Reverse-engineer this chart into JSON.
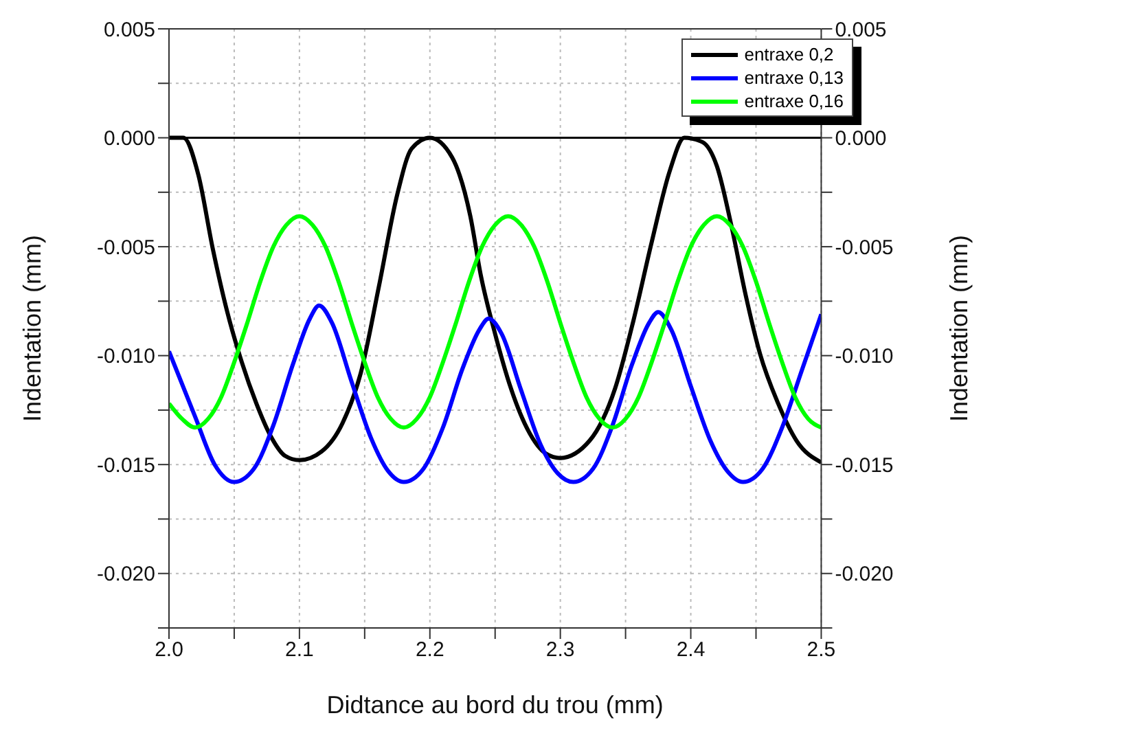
{
  "chart_data": {
    "type": "line",
    "xlabel": "Didtance au bord du trou (mm)",
    "ylabel": "Indentation (mm)",
    "y2label": "Indentation (mm)",
    "xlim": [
      2.0,
      2.5
    ],
    "xticks": [
      {
        "value": 2.0,
        "label": "2.0"
      },
      {
        "value": 2.05,
        "label": null
      },
      {
        "value": 2.1,
        "label": "2.1"
      },
      {
        "value": 2.15,
        "label": null
      },
      {
        "value": 2.2,
        "label": "2.2"
      },
      {
        "value": 2.25,
        "label": null
      },
      {
        "value": 2.3,
        "label": "2.3"
      },
      {
        "value": 2.35,
        "label": null
      },
      {
        "value": 2.4,
        "label": "2.4"
      },
      {
        "value": 2.45,
        "label": null
      },
      {
        "value": 2.5,
        "label": "2.5"
      }
    ],
    "ylim": [
      -0.0225,
      0.005
    ],
    "yticks": [
      {
        "value": -0.0225,
        "label": null
      },
      {
        "value": -0.02,
        "label": "-0.020"
      },
      {
        "value": -0.0175,
        "label": null
      },
      {
        "value": -0.015,
        "label": "-0.015"
      },
      {
        "value": -0.0125,
        "label": null
      },
      {
        "value": -0.01,
        "label": "-0.010"
      },
      {
        "value": -0.0075,
        "label": null
      },
      {
        "value": -0.005,
        "label": "-0.005"
      },
      {
        "value": -0.0025,
        "label": null
      },
      {
        "value": 0,
        "label": "0.000"
      },
      {
        "value": 0.0025,
        "label": null
      },
      {
        "value": 0.005,
        "label": "0.005"
      }
    ],
    "y2lim": [
      -0.0225,
      0.005
    ],
    "y2ticks": [
      {
        "value": -0.0225,
        "label": null
      },
      {
        "value": -0.02,
        "label": "-0.020"
      },
      {
        "value": -0.0175,
        "label": null
      },
      {
        "value": -0.015,
        "label": "-0.015"
      },
      {
        "value": -0.0125,
        "label": null
      },
      {
        "value": -0.01,
        "label": "-0.010"
      },
      {
        "value": -0.0075,
        "label": null
      },
      {
        "value": -0.005,
        "label": "-0.005"
      },
      {
        "value": -0.0025,
        "label": null
      },
      {
        "value": 0,
        "label": "0.000"
      },
      {
        "value": 0.0025,
        "label": null
      },
      {
        "value": 0.005,
        "label": "0.005"
      }
    ],
    "grid": true,
    "legend": "top right",
    "marker": "none",
    "line_style": "solid",
    "ref_lines": [
      {
        "axis": "y",
        "value": 0,
        "color": "#000000"
      }
    ],
    "series": [
      {
        "name": "entraxe 0,2",
        "color": "#000000",
        "x": [
          2.0,
          2.011,
          2.0225,
          2.0336,
          2.0447,
          2.0558,
          2.067,
          2.078,
          2.089,
          2.1,
          2.117,
          2.133,
          2.147,
          2.161,
          2.175,
          2.186,
          2.2,
          2.217,
          2.231,
          2.239,
          2.25,
          2.261,
          2.275,
          2.289,
          2.3,
          2.3225,
          2.342,
          2.356,
          2.37,
          2.384,
          2.395,
          2.409,
          2.42,
          2.431,
          2.442,
          2.453,
          2.467,
          2.481,
          2.5
        ],
        "values": [
          0,
          0,
          -0.0017,
          -0.0051,
          -0.008,
          -0.0103,
          -0.0122,
          -0.0137,
          -0.0146,
          -0.0148,
          -0.0144,
          -0.0131,
          -0.0108,
          -0.0068,
          -0.0026,
          -0.0005,
          0,
          -0.0009,
          -0.0036,
          -0.0063,
          -0.009,
          -0.0113,
          -0.0134,
          -0.0145,
          -0.0147,
          -0.0139,
          -0.0115,
          -0.0084,
          -0.0048,
          -0.0015,
          0,
          -0.0002,
          -0.0013,
          -0.004,
          -0.0072,
          -0.0099,
          -0.0122,
          -0.0139,
          -0.0149
        ]
      },
      {
        "name": "entraxe 0,13",
        "color": "#0000ff",
        "x": [
          2.0,
          2.02,
          2.035,
          2.05,
          2.065,
          2.08,
          2.095,
          2.108,
          2.115,
          2.125,
          2.14,
          2.155,
          2.168,
          2.18,
          2.195,
          2.21,
          2.225,
          2.238,
          2.245,
          2.255,
          2.27,
          2.285,
          2.298,
          2.31,
          2.325,
          2.34,
          2.355,
          2.368,
          2.375,
          2.385,
          2.4,
          2.415,
          2.428,
          2.44,
          2.455,
          2.47,
          2.485,
          2.5
        ],
        "values": [
          -0.0098,
          -0.0128,
          -0.015,
          -0.0158,
          -0.0152,
          -0.0132,
          -0.0104,
          -0.0083,
          -0.0077,
          -0.0085,
          -0.0112,
          -0.0138,
          -0.0153,
          -0.0158,
          -0.0152,
          -0.0133,
          -0.0106,
          -0.0088,
          -0.0083,
          -0.009,
          -0.0116,
          -0.0141,
          -0.0154,
          -0.0158,
          -0.0152,
          -0.0132,
          -0.0104,
          -0.0085,
          -0.008,
          -0.0088,
          -0.0114,
          -0.0139,
          -0.0153,
          -0.0158,
          -0.0152,
          -0.0133,
          -0.0107,
          -0.0081
        ]
      },
      {
        "name": "entraxe 0,16",
        "color": "#00ff00",
        "x": [
          2.0,
          2.01,
          2.02,
          2.03,
          2.04,
          2.05,
          2.06,
          2.07,
          2.08,
          2.09,
          2.1,
          2.11,
          2.12,
          2.13,
          2.14,
          2.15,
          2.16,
          2.17,
          2.18,
          2.19,
          2.2,
          2.21,
          2.22,
          2.23,
          2.24,
          2.25,
          2.26,
          2.27,
          2.28,
          2.29,
          2.3,
          2.31,
          2.32,
          2.33,
          2.34,
          2.35,
          2.36,
          2.37,
          2.38,
          2.39,
          2.4,
          2.41,
          2.42,
          2.43,
          2.44,
          2.45,
          2.46,
          2.47,
          2.48,
          2.49,
          2.5
        ],
        "values": [
          -0.0122,
          -0.0129,
          -0.0133,
          -0.0129,
          -0.0119,
          -0.0103,
          -0.0085,
          -0.0066,
          -0.005,
          -0.004,
          -0.0036,
          -0.004,
          -0.005,
          -0.0066,
          -0.0085,
          -0.0103,
          -0.0119,
          -0.0129,
          -0.0133,
          -0.0129,
          -0.0119,
          -0.0103,
          -0.0085,
          -0.0066,
          -0.005,
          -0.004,
          -0.0036,
          -0.004,
          -0.005,
          -0.0066,
          -0.0085,
          -0.0103,
          -0.0119,
          -0.0129,
          -0.0133,
          -0.0129,
          -0.0119,
          -0.0103,
          -0.0085,
          -0.0066,
          -0.005,
          -0.004,
          -0.0036,
          -0.004,
          -0.005,
          -0.0066,
          -0.0085,
          -0.0103,
          -0.0119,
          -0.0129,
          -0.0133
        ]
      }
    ]
  }
}
